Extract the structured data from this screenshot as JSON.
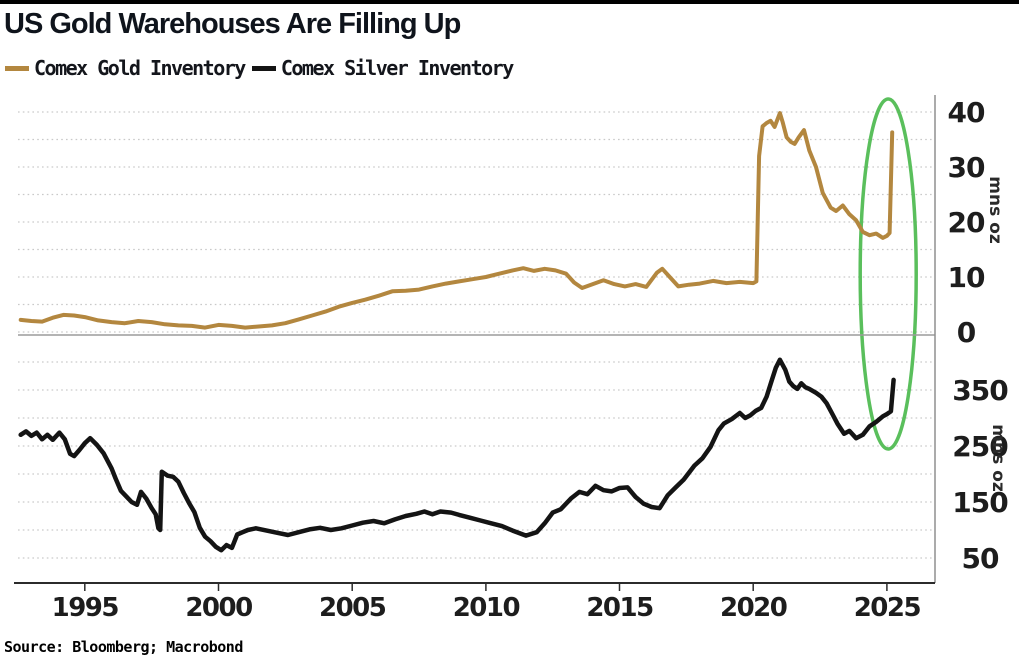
{
  "header": {
    "title": "US Gold Warehouses Are Filling Up"
  },
  "legend": {
    "items": [
      {
        "label": "Comex Gold Inventory",
        "color": "#b3873f"
      },
      {
        "label": "Comex Silver Inventory",
        "color": "#141414"
      }
    ]
  },
  "source": {
    "text": "Source: Bloomberg; Macrobond"
  },
  "chart_data": {
    "type": "line",
    "title": "US Gold Warehouses Are Filling Up",
    "grid": "dotted horizontal",
    "legend_position": "top-left",
    "x_domain": [
      1992.5,
      2026.8
    ],
    "x_ticks": [
      1995,
      2000,
      2005,
      2010,
      2015,
      2020,
      2025
    ],
    "annotation": {
      "shape": "ellipse",
      "center_year": 2025.05,
      "color": "#5abf5c"
    },
    "panels": [
      {
        "name": "gold",
        "ylabel": "mns oz",
        "ylim": [
          0,
          42.5
        ],
        "y_ticks": [
          0,
          10,
          20,
          30,
          40
        ],
        "grid_min": 0,
        "grid_max": 40,
        "grid_step": 5,
        "series": {
          "name": "Comex Gold Inventory",
          "color": "#b3873f",
          "points": [
            [
              1992.6,
              2.2
            ],
            [
              1993.0,
              2.0
            ],
            [
              1993.4,
              1.9
            ],
            [
              1993.8,
              2.6
            ],
            [
              1994.2,
              3.1
            ],
            [
              1994.6,
              3.0
            ],
            [
              1995.0,
              2.7
            ],
            [
              1995.5,
              2.1
            ],
            [
              1996.0,
              1.8
            ],
            [
              1996.5,
              1.6
            ],
            [
              1997.0,
              2.0
            ],
            [
              1997.5,
              1.8
            ],
            [
              1998.0,
              1.4
            ],
            [
              1998.5,
              1.2
            ],
            [
              1999.0,
              1.1
            ],
            [
              1999.5,
              0.8
            ],
            [
              2000.0,
              1.3
            ],
            [
              2000.5,
              1.1
            ],
            [
              2001.0,
              0.8
            ],
            [
              2001.5,
              1.0
            ],
            [
              2002.0,
              1.2
            ],
            [
              2002.5,
              1.6
            ],
            [
              2003.0,
              2.3
            ],
            [
              2003.5,
              3.0
            ],
            [
              2004.0,
              3.7
            ],
            [
              2004.5,
              4.6
            ],
            [
              2005.0,
              5.3
            ],
            [
              2005.5,
              5.9
            ],
            [
              2006.0,
              6.6
            ],
            [
              2006.5,
              7.4
            ],
            [
              2007.0,
              7.5
            ],
            [
              2007.5,
              7.7
            ],
            [
              2008.0,
              8.3
            ],
            [
              2008.5,
              8.8
            ],
            [
              2009.0,
              9.2
            ],
            [
              2009.5,
              9.6
            ],
            [
              2010.0,
              10.0
            ],
            [
              2010.5,
              10.6
            ],
            [
              2011.0,
              11.2
            ],
            [
              2011.4,
              11.6
            ],
            [
              2011.8,
              11.1
            ],
            [
              2012.2,
              11.5
            ],
            [
              2012.6,
              11.2
            ],
            [
              2013.0,
              10.6
            ],
            [
              2013.3,
              9.0
            ],
            [
              2013.6,
              8.0
            ],
            [
              2014.0,
              8.7
            ],
            [
              2014.4,
              9.4
            ],
            [
              2014.8,
              8.7
            ],
            [
              2015.2,
              8.3
            ],
            [
              2015.6,
              8.7
            ],
            [
              2016.0,
              8.2
            ],
            [
              2016.4,
              10.8
            ],
            [
              2016.6,
              11.5
            ],
            [
              2016.9,
              9.9
            ],
            [
              2017.2,
              8.3
            ],
            [
              2017.6,
              8.6
            ],
            [
              2018.0,
              8.8
            ],
            [
              2018.5,
              9.3
            ],
            [
              2019.0,
              8.9
            ],
            [
              2019.5,
              9.1
            ],
            [
              2020.0,
              8.9
            ],
            [
              2020.12,
              9.2
            ],
            [
              2020.22,
              32.0
            ],
            [
              2020.35,
              37.4
            ],
            [
              2020.5,
              38.0
            ],
            [
              2020.65,
              38.4
            ],
            [
              2020.8,
              37.3
            ],
            [
              2021.0,
              39.8
            ],
            [
              2021.1,
              38.2
            ],
            [
              2021.25,
              35.4
            ],
            [
              2021.4,
              34.6
            ],
            [
              2021.55,
              34.2
            ],
            [
              2021.7,
              35.4
            ],
            [
              2021.9,
              36.7
            ],
            [
              2022.1,
              33.0
            ],
            [
              2022.35,
              30.0
            ],
            [
              2022.6,
              25.3
            ],
            [
              2022.9,
              22.6
            ],
            [
              2023.1,
              22.0
            ],
            [
              2023.35,
              23.0
            ],
            [
              2023.6,
              21.4
            ],
            [
              2023.85,
              20.3
            ],
            [
              2024.1,
              18.2
            ],
            [
              2024.35,
              17.6
            ],
            [
              2024.6,
              17.9
            ],
            [
              2024.85,
              17.1
            ],
            [
              2025.0,
              17.5
            ],
            [
              2025.1,
              18.0
            ],
            [
              2025.2,
              36.3
            ]
          ]
        }
      },
      {
        "name": "silver",
        "ylabel": "mns oz",
        "ylim": [
          5,
          430
        ],
        "y_ticks": [
          50,
          150,
          250,
          350
        ],
        "grid_min": 50,
        "grid_max": 400,
        "grid_step": 50,
        "series": {
          "name": "Comex Silver Inventory",
          "color": "#141414",
          "points": [
            [
              1992.6,
              270
            ],
            [
              1992.8,
              276
            ],
            [
              1993.0,
              268
            ],
            [
              1993.2,
              274
            ],
            [
              1993.4,
              262
            ],
            [
              1993.6,
              270
            ],
            [
              1993.8,
              261
            ],
            [
              1994.05,
              274
            ],
            [
              1994.25,
              262
            ],
            [
              1994.45,
              236
            ],
            [
              1994.6,
              232
            ],
            [
              1994.8,
              243
            ],
            [
              1995.0,
              255
            ],
            [
              1995.2,
              264
            ],
            [
              1995.45,
              252
            ],
            [
              1995.7,
              237
            ],
            [
              1996.0,
              210
            ],
            [
              1996.15,
              192
            ],
            [
              1996.35,
              170
            ],
            [
              1996.55,
              160
            ],
            [
              1996.75,
              150
            ],
            [
              1996.95,
              145
            ],
            [
              1997.1,
              168
            ],
            [
              1997.3,
              156
            ],
            [
              1997.5,
              139
            ],
            [
              1997.65,
              128
            ],
            [
              1997.75,
              103
            ],
            [
              1997.82,
              100
            ],
            [
              1997.88,
              204
            ],
            [
              1998.1,
              197
            ],
            [
              1998.3,
              195
            ],
            [
              1998.5,
              186
            ],
            [
              1998.7,
              166
            ],
            [
              1998.9,
              148
            ],
            [
              1999.1,
              132
            ],
            [
              1999.3,
              104
            ],
            [
              1999.5,
              88
            ],
            [
              1999.7,
              80
            ],
            [
              1999.9,
              70
            ],
            [
              2000.1,
              64
            ],
            [
              2000.3,
              73
            ],
            [
              2000.5,
              68
            ],
            [
              2000.7,
              92
            ],
            [
              2000.9,
              96
            ],
            [
              2001.1,
              100
            ],
            [
              2001.4,
              103
            ],
            [
              2001.8,
              99
            ],
            [
              2002.2,
              95
            ],
            [
              2002.6,
              91
            ],
            [
              2003.0,
              96
            ],
            [
              2003.4,
              101
            ],
            [
              2003.8,
              104
            ],
            [
              2004.2,
              100
            ],
            [
              2004.6,
              103
            ],
            [
              2005.0,
              108
            ],
            [
              2005.4,
              113
            ],
            [
              2005.8,
              116
            ],
            [
              2006.2,
              112
            ],
            [
              2006.6,
              119
            ],
            [
              2007.0,
              125
            ],
            [
              2007.4,
              129
            ],
            [
              2007.7,
              133
            ],
            [
              2008.0,
              128
            ],
            [
              2008.3,
              133
            ],
            [
              2008.7,
              131
            ],
            [
              2009.0,
              127
            ],
            [
              2009.4,
              122
            ],
            [
              2009.8,
              117
            ],
            [
              2010.2,
              112
            ],
            [
              2010.6,
              107
            ],
            [
              2011.0,
              99
            ],
            [
              2011.5,
              90
            ],
            [
              2011.9,
              96
            ],
            [
              2012.2,
              112
            ],
            [
              2012.5,
              131
            ],
            [
              2012.8,
              137
            ],
            [
              2013.2,
              157
            ],
            [
              2013.5,
              168
            ],
            [
              2013.8,
              164
            ],
            [
              2014.1,
              179
            ],
            [
              2014.4,
              171
            ],
            [
              2014.7,
              169
            ],
            [
              2015.0,
              175
            ],
            [
              2015.3,
              176
            ],
            [
              2015.6,
              159
            ],
            [
              2015.9,
              147
            ],
            [
              2016.2,
              141
            ],
            [
              2016.5,
              139
            ],
            [
              2016.8,
              162
            ],
            [
              2017.1,
              176
            ],
            [
              2017.4,
              190
            ],
            [
              2017.8,
              215
            ],
            [
              2018.1,
              228
            ],
            [
              2018.4,
              248
            ],
            [
              2018.7,
              278
            ],
            [
              2018.9,
              290
            ],
            [
              2019.2,
              298
            ],
            [
              2019.5,
              309
            ],
            [
              2019.7,
              300
            ],
            [
              2019.9,
              305
            ],
            [
              2020.1,
              313
            ],
            [
              2020.3,
              318
            ],
            [
              2020.5,
              338
            ],
            [
              2020.7,
              368
            ],
            [
              2020.85,
              390
            ],
            [
              2021.0,
              404
            ],
            [
              2021.2,
              386
            ],
            [
              2021.35,
              365
            ],
            [
              2021.5,
              357
            ],
            [
              2021.65,
              352
            ],
            [
              2021.8,
              362
            ],
            [
              2021.95,
              355
            ],
            [
              2022.1,
              352
            ],
            [
              2022.35,
              345
            ],
            [
              2022.55,
              338
            ],
            [
              2022.75,
              326
            ],
            [
              2022.95,
              308
            ],
            [
              2023.15,
              290
            ],
            [
              2023.4,
              272
            ],
            [
              2023.6,
              277
            ],
            [
              2023.85,
              264
            ],
            [
              2024.1,
              270
            ],
            [
              2024.35,
              285
            ],
            [
              2024.6,
              293
            ],
            [
              2024.85,
              303
            ],
            [
              2025.0,
              307
            ],
            [
              2025.15,
              312
            ],
            [
              2025.25,
              368
            ]
          ]
        }
      }
    ]
  }
}
